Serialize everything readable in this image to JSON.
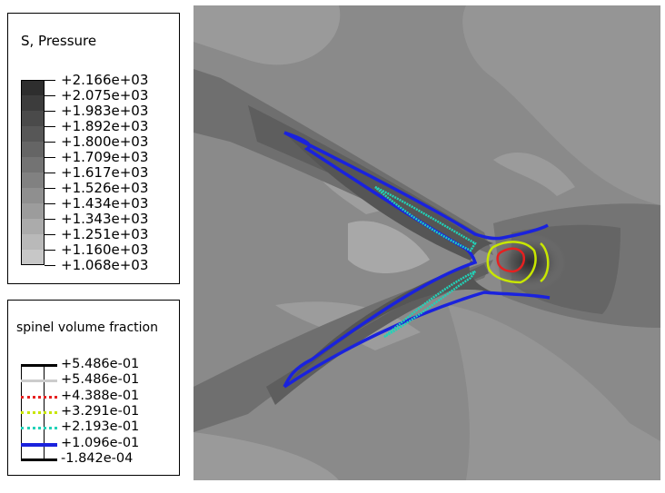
{
  "pressure_legend": {
    "title": "S, Pressure",
    "values": [
      "+2.166e+03",
      "+2.075e+03",
      "+1.983e+03",
      "+1.892e+03",
      "+1.800e+03",
      "+1.709e+03",
      "+1.617e+03",
      "+1.526e+03",
      "+1.434e+03",
      "+1.343e+03",
      "+1.251e+03",
      "+1.160e+03",
      "+1.068e+03"
    ],
    "colors": [
      "#2e2e2e",
      "#3c3c3c",
      "#4a4a4a",
      "#575757",
      "#656565",
      "#737373",
      "#818181",
      "#8f8f8f",
      "#9c9c9c",
      "#ababab",
      "#b9b9b9",
      "#c7c7c7",
      "#d5d5d5"
    ]
  },
  "spinel_legend": {
    "title": "spinel volume fraction",
    "values": [
      "+5.486e-01",
      "+5.486e-01",
      "+4.388e-01",
      "+3.291e-01",
      "+2.193e-01",
      "+1.096e-01",
      "-1.842e-04"
    ],
    "line_colors": [
      "#000000",
      "#cccccc",
      "#e62020",
      "#c8e600",
      "#22d2b8",
      "#1a22dd",
      "#000000"
    ],
    "line_styles": [
      "solid",
      "solid",
      "dotted",
      "dotted",
      "dotted",
      "solid",
      "solid"
    ]
  },
  "plot": {
    "background_color": "#8a8a8a",
    "contour_colors": {
      "low": "#1a22dd",
      "mid": "#22d2b8",
      "high": "#c8e600",
      "peak": "#e62020"
    }
  }
}
